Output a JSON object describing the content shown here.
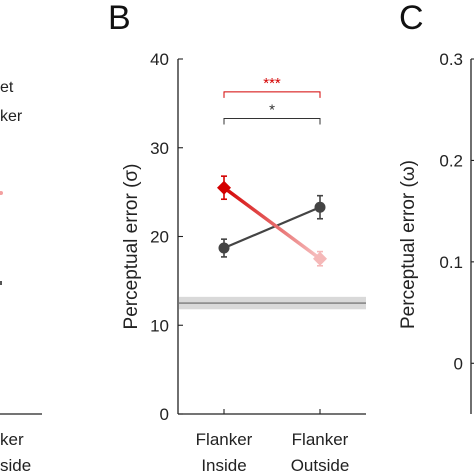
{
  "panel_labels": {
    "left": "B",
    "right": "C"
  },
  "left_fragments": {
    "legend_1": "et",
    "legend_2": "ker",
    "xtick_1": "ker",
    "xtick_2": "side"
  },
  "chart_data": [
    {
      "type": "line",
      "panel": "B",
      "ylabel": "Perceptual error (σ)",
      "ylim": [
        0,
        40
      ],
      "yticks": [
        0,
        10,
        20,
        30,
        40
      ],
      "categories": [
        "Flanker\nInside",
        "Flanker\nOutside"
      ],
      "category_lines": [
        [
          "Flanker",
          "Inside"
        ],
        [
          "Flanker",
          "Outside"
        ]
      ],
      "grid": false,
      "series": [
        {
          "values": [
            25.5,
            17.5
          ],
          "errors": [
            1.3,
            0.8
          ],
          "color": "#d40000",
          "marker": "diamond"
        },
        {
          "values": [
            18.7,
            23.3
          ],
          "errors": [
            1.0,
            1.3
          ],
          "color": "#444444",
          "marker": "circle"
        }
      ],
      "reference_band": {
        "value": 12.5,
        "lower": 11.8,
        "upper": 13.2
      },
      "annotations": [
        {
          "text": "***",
          "color": "#d40000",
          "y": 36.3
        },
        {
          "text": "*",
          "color": "#333333",
          "y": 33.3
        }
      ]
    },
    {
      "type": "line",
      "panel": "C",
      "ylabel": "Perceptual error (ω)",
      "ylim": [
        -0.05,
        0.3
      ],
      "yticks": [
        0,
        0.1,
        0.2,
        0.3
      ],
      "ytick_labels": [
        "0",
        "0.1",
        "0.2",
        "0.3"
      ],
      "series": []
    }
  ]
}
